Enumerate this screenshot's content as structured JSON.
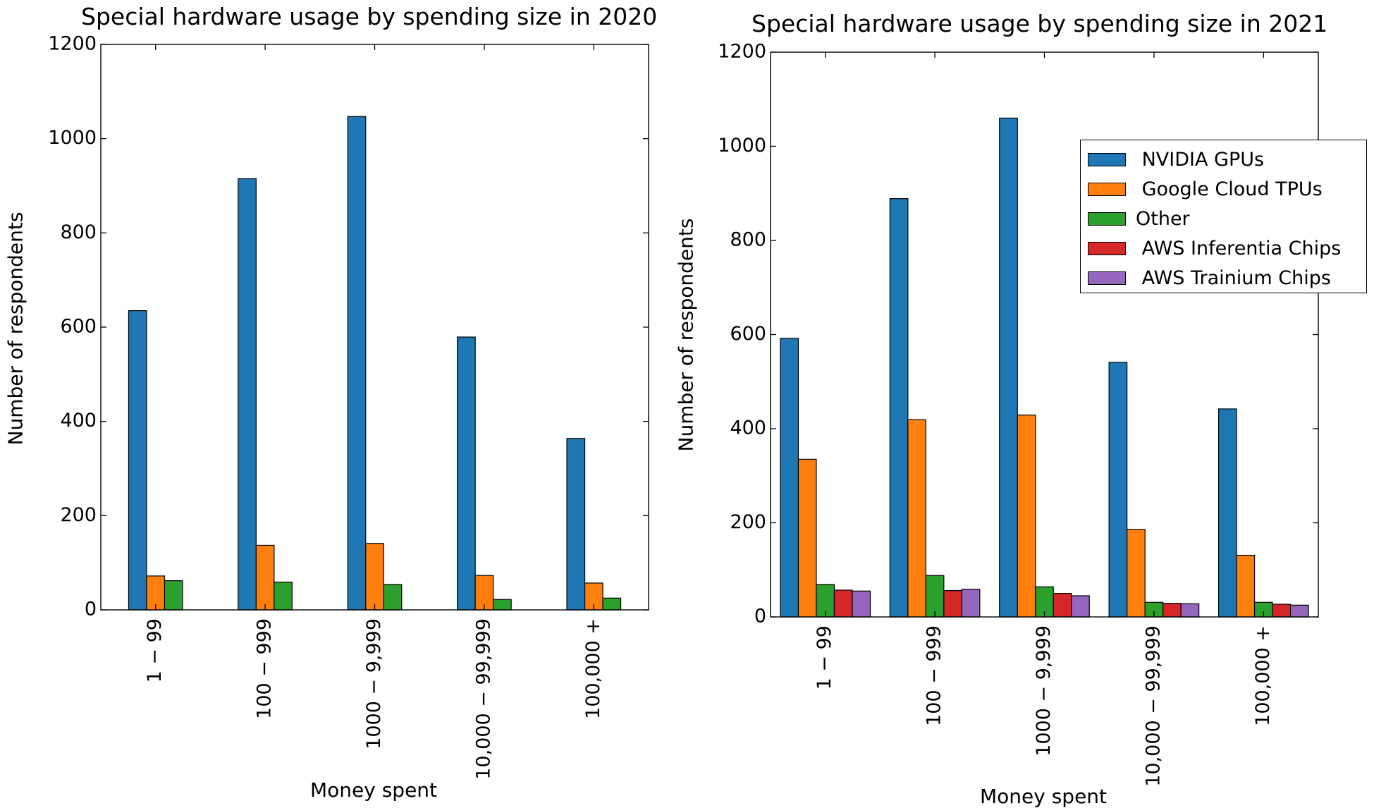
{
  "chart_data": [
    {
      "type": "bar",
      "title": "Special hardware usage by spending size in 2020",
      "xlabel": "Money spent",
      "ylabel": "Number of respondents",
      "categories": [
        "1 − 99",
        "100 − 999",
        "1000 − 9,999",
        "10,000 − 99,999",
        "100,000 +"
      ],
      "ylim": [
        0,
        1200
      ],
      "yticks": [
        0,
        200,
        400,
        600,
        800,
        1000,
        1200
      ],
      "grid": false,
      "legend": "none",
      "series": [
        {
          "name": "NVIDIA GPUs",
          "color": "#1f77b4",
          "values": [
            635,
            915,
            1047,
            579,
            364
          ]
        },
        {
          "name": "Google Cloud TPUs",
          "color": "#ff7f0e",
          "values": [
            72,
            137,
            141,
            73,
            57
          ]
        },
        {
          "name": "Other",
          "color": "#2ca02c",
          "values": [
            62,
            59,
            54,
            22,
            25
          ]
        }
      ]
    },
    {
      "type": "bar",
      "title": "Special hardware usage by spending size in 2021",
      "xlabel": "Money spent",
      "ylabel": "Number of respondents",
      "categories": [
        "1 − 99",
        "100 − 999",
        "1000 − 9,999",
        "10,000 − 99,999",
        "100,000 +"
      ],
      "ylim": [
        0,
        1200
      ],
      "yticks": [
        0,
        200,
        400,
        600,
        800,
        1000,
        1200
      ],
      "grid": false,
      "legend": "upper right, partly outside the axes",
      "series": [
        {
          "name": "NVIDIA GPUs",
          "color": "#1f77b4",
          "values": [
            592,
            889,
            1060,
            541,
            442
          ]
        },
        {
          "name": "Google Cloud TPUs",
          "color": "#ff7f0e",
          "values": [
            335,
            419,
            429,
            186,
            131
          ]
        },
        {
          "name": "Other",
          "color": "#2ca02c",
          "values": [
            69,
            88,
            64,
            31,
            31
          ]
        },
        {
          "name": "AWS Inferentia Chips",
          "color": "#d62728",
          "values": [
            57,
            56,
            50,
            29,
            27
          ]
        },
        {
          "name": "AWS Trainium Chips",
          "color": "#9467bd",
          "values": [
            55,
            59,
            45,
            28,
            25
          ]
        }
      ]
    }
  ],
  "legend": {
    "items": [
      {
        "label": " NVIDIA GPUs",
        "color": "#1f77b4"
      },
      {
        "label": " Google Cloud TPUs",
        "color": "#ff7f0e"
      },
      {
        "label": "Other",
        "color": "#2ca02c"
      },
      {
        "label": " AWS Inferentia Chips",
        "color": "#d62728"
      },
      {
        "label": " AWS Trainium Chips",
        "color": "#9467bd"
      }
    ]
  }
}
